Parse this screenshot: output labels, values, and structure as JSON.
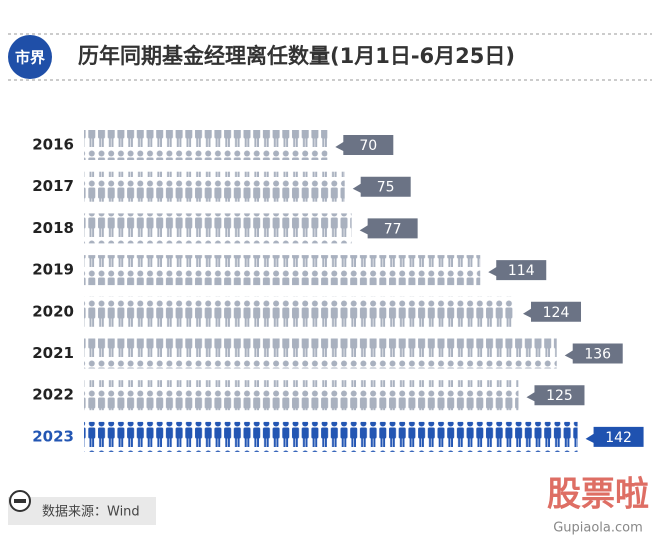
{
  "brand": "市界",
  "source": "数据来源：Wind",
  "watermark": {
    "title": "股票啦",
    "url": "Gupiaola.com"
  },
  "chart_data": {
    "type": "pictogram",
    "title": "历年同期基金经理离任数量(1月1日-6月25日)",
    "categories": [
      "2016",
      "2017",
      "2018",
      "2019",
      "2020",
      "2021",
      "2022",
      "2023"
    ],
    "values": [
      70,
      75,
      77,
      114,
      124,
      136,
      125,
      142
    ],
    "colors": [
      "#a9b1bf",
      "#a9b1bf",
      "#a9b1bf",
      "#a9b1bf",
      "#a9b1bf",
      "#a9b1bf",
      "#a9b1bf",
      "#2356b3"
    ],
    "label_colors": [
      "#6b7385",
      "#6b7385",
      "#6b7385",
      "#6b7385",
      "#6b7385",
      "#6b7385",
      "#6b7385",
      "#1f52b0"
    ],
    "category_colors": [
      "#222222",
      "#222222",
      "#222222",
      "#222222",
      "#222222",
      "#222222",
      "#222222",
      "#2356b3"
    ],
    "xlim": [
      0,
      145
    ]
  }
}
